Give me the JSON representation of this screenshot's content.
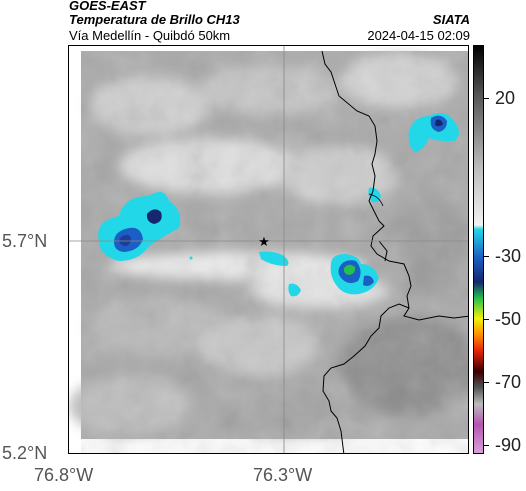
{
  "header": {
    "satellite": "GOES-EAST",
    "product": "Temperatura de Brillo CH13",
    "region": "Vía Medellín - Quibdó 50km",
    "organization": "SIATA",
    "timestamp": "2024-04-15 02:09"
  },
  "axes": {
    "lat_labels": [
      "5.7°N",
      "5.2°N"
    ],
    "lon_labels": [
      "76.8°W",
      "76.3°W"
    ]
  },
  "colorbar": {
    "ticks": [
      "20",
      "-30",
      "-50",
      "-70",
      "-90"
    ],
    "tick_values": [
      20,
      -30,
      -50,
      -70,
      -90
    ],
    "range": [
      -93,
      37
    ],
    "colors": {
      "warm_top": "#000000",
      "gray_mid": "#bdbdbd",
      "light": "#f2f2f2",
      "cyan": "#22d7e8",
      "blue": "#1b5fc4",
      "navy": "#15276e",
      "green": "#25c04a",
      "yellow": "#f2f20c",
      "red": "#e5210a",
      "dark": "#3a0000",
      "magenta": "#b455b0"
    }
  },
  "map": {
    "marker": "star-icon",
    "border_color": "#000000",
    "gridline_color": "#888888"
  }
}
